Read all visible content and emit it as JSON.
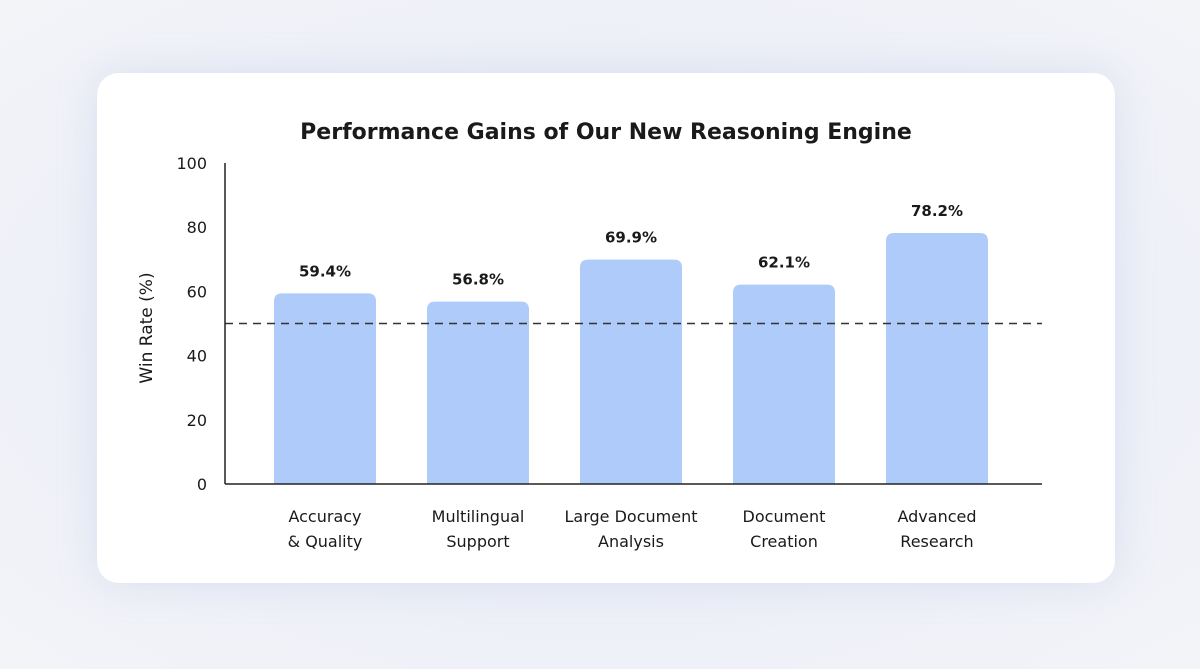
{
  "chart_data": {
    "type": "bar",
    "title": "Performance Gains of Our New Reasoning Engine",
    "ylabel": "Win Rate (%)",
    "xlabel": "",
    "ylim": [
      0,
      100
    ],
    "yticks": [
      "0",
      "20",
      "40",
      "60",
      "80",
      "100"
    ],
    "categories": [
      [
        "Accuracy",
        "& Quality"
      ],
      [
        "Multilingual",
        "Support"
      ],
      [
        "Large Document",
        "Analysis"
      ],
      [
        "Document",
        "Creation"
      ],
      [
        "Advanced",
        "Research"
      ]
    ],
    "values": [
      59.4,
      56.8,
      69.9,
      62.1,
      78.2
    ],
    "value_labels": [
      "59.4%",
      "56.8%",
      "69.9%",
      "62.1%",
      "78.2%"
    ],
    "reference_line": 50,
    "bar_color": "#aecbfa",
    "grid": false,
    "legend": "none"
  }
}
